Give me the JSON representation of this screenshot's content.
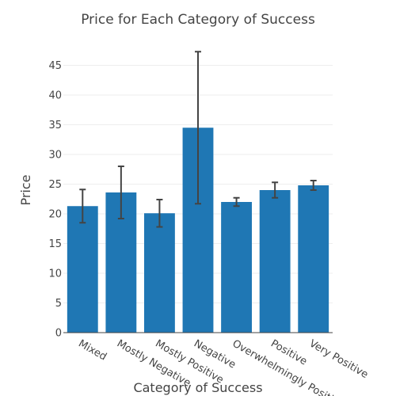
{
  "chart_data": {
    "type": "bar",
    "title": "Price for Each Category of Success",
    "xlabel": "Category of Success",
    "ylabel": "Price",
    "categories": [
      "Mixed",
      "Mostly Negative",
      "Mostly Positive",
      "Negative",
      "Overwhelmingly Positive",
      "Positive",
      "Very Positive"
    ],
    "values": [
      21.3,
      23.6,
      20.1,
      34.5,
      22.0,
      24.0,
      24.8
    ],
    "error_minus": [
      2.8,
      4.4,
      2.3,
      12.8,
      0.7,
      1.3,
      0.8
    ],
    "error_plus": [
      2.8,
      4.4,
      2.3,
      12.8,
      0.7,
      1.3,
      0.8
    ],
    "ylim": [
      0,
      48
    ],
    "yticks": [
      0,
      5,
      10,
      15,
      20,
      25,
      30,
      35,
      40,
      45
    ],
    "grid": true,
    "colors": {
      "bar": "#1f77b4",
      "error_bar": "#444444",
      "grid": "#eeeeee"
    }
  }
}
